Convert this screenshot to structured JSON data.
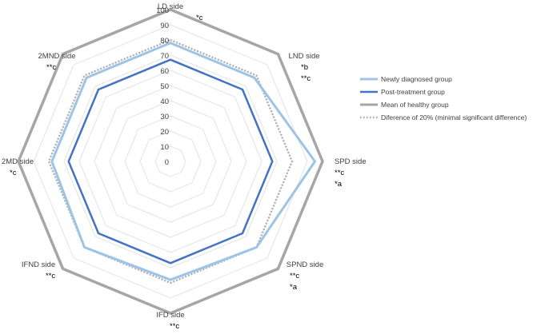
{
  "chart_data": {
    "type": "radar",
    "title": "",
    "categories": [
      "LD side",
      "LND side",
      "SPD side",
      "SPND side",
      "IFD side",
      "IFND side",
      "2MD side",
      "2MND side"
    ],
    "significance": [
      "*c",
      "*b\n**c",
      "**c\n*a",
      "**c\n*a",
      "**c",
      "**c",
      "*c",
      "**c"
    ],
    "rlim": [
      0,
      100
    ],
    "ticks": [
      "0",
      "10",
      "20",
      "30",
      "40",
      "50",
      "60",
      "70",
      "80",
      "90",
      "100"
    ],
    "grid": true,
    "legend_position": "right",
    "series": [
      {
        "name": "Newly diagnosed  group",
        "values": [
          78,
          78,
          95,
          80,
          78,
          80,
          78,
          78
        ]
      },
      {
        "name": "Post-treatment  group",
        "values": [
          67,
          67,
          67,
          67,
          67,
          67,
          67,
          67
        ]
      },
      {
        "name": "Mean of healthy group",
        "values": [
          100,
          100,
          100,
          100,
          100,
          100,
          100,
          100
        ]
      },
      {
        "name": "Diference of 20%  (minimal significant difference)",
        "values": [
          80,
          80,
          80,
          80,
          80,
          80,
          80,
          80
        ]
      }
    ],
    "colors": [
      "#9dc3e6",
      "#4472c4",
      "#a6a6a6",
      "#a6a6a6"
    ]
  }
}
